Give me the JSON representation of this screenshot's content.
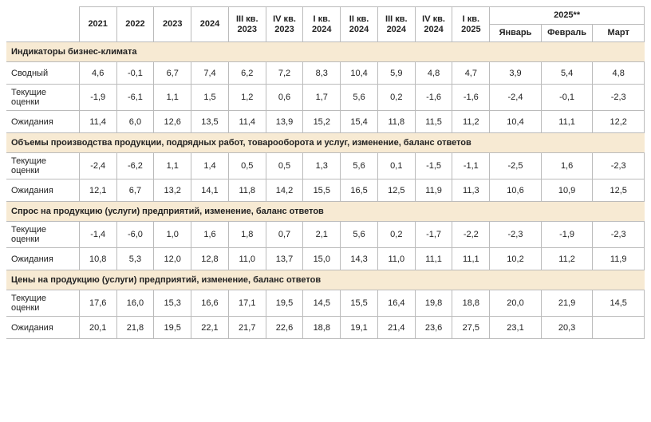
{
  "header": {
    "years": [
      "2021",
      "2022",
      "2023",
      "2024"
    ],
    "quarters": [
      "III кв. 2023",
      "IV кв. 2023",
      "I кв. 2024",
      "II кв. 2024",
      "III кв. 2024",
      "IV кв. 2024",
      "I кв. 2025"
    ],
    "months_group": "2025**",
    "months": [
      "Январь",
      "Февраль",
      "Март"
    ]
  },
  "sections": [
    {
      "title": "Индикаторы бизнес-климата",
      "rows": [
        {
          "label": "Сводный",
          "cells": [
            "4,6",
            "-0,1",
            "6,7",
            "7,4",
            "6,2",
            "7,2",
            "8,3",
            "10,4",
            "5,9",
            "4,8",
            "4,7",
            "3,9",
            "5,4",
            "4,8"
          ]
        },
        {
          "label": "Текущие оценки",
          "cells": [
            "-1,9",
            "-6,1",
            "1,1",
            "1,5",
            "1,2",
            "0,6",
            "1,7",
            "5,6",
            "0,2",
            "-1,6",
            "-1,6",
            "-2,4",
            "-0,1",
            "-2,3"
          ]
        },
        {
          "label": "Ожидания",
          "cells": [
            "11,4",
            "6,0",
            "12,6",
            "13,5",
            "11,4",
            "13,9",
            "15,2",
            "15,4",
            "11,8",
            "11,5",
            "11,2",
            "10,4",
            "11,1",
            "12,2"
          ]
        }
      ]
    },
    {
      "title": "Объемы производства продукции, подрядных работ, товарооборота и услуг, изменение, баланс ответов",
      "rows": [
        {
          "label": "Текущие оценки",
          "cells": [
            "-2,4",
            "-6,2",
            "1,1",
            "1,4",
            "0,5",
            "0,5",
            "1,3",
            "5,6",
            "0,1",
            "-1,5",
            "-1,1",
            "-2,5",
            "1,6",
            "-2,3"
          ]
        },
        {
          "label": "Ожидания",
          "cells": [
            "12,1",
            "6,7",
            "13,2",
            "14,1",
            "11,8",
            "14,2",
            "15,5",
            "16,5",
            "12,5",
            "11,9",
            "11,3",
            "10,6",
            "10,9",
            "12,5"
          ]
        }
      ]
    },
    {
      "title": "Спрос на продукцию (услуги) предприятий, изменение, баланс ответов",
      "rows": [
        {
          "label": "Текущие оценки",
          "cells": [
            "-1,4",
            "-6,0",
            "1,0",
            "1,6",
            "1,8",
            "0,7",
            "2,1",
            "5,6",
            "0,2",
            "-1,7",
            "-2,2",
            "-2,3",
            "-1,9",
            "-2,3"
          ]
        },
        {
          "label": "Ожидания",
          "cells": [
            "10,8",
            "5,3",
            "12,0",
            "12,8",
            "11,0",
            "13,7",
            "15,0",
            "14,3",
            "11,0",
            "11,1",
            "11,1",
            "10,2",
            "11,2",
            "11,9"
          ]
        }
      ]
    },
    {
      "title": "Цены на продукцию (услуги) предприятий, изменение, баланс ответов",
      "rows": [
        {
          "label": "Текущие оценки",
          "cells": [
            "17,6",
            "16,0",
            "15,3",
            "16,6",
            "17,1",
            "19,5",
            "14,5",
            "15,5",
            "16,4",
            "19,8",
            "18,8",
            "20,0",
            "21,9",
            "14,5"
          ]
        },
        {
          "label": "Ожидания",
          "cells": [
            "20,1",
            "21,8",
            "19,5",
            "22,1",
            "21,7",
            "22,6",
            "18,8",
            "19,1",
            "21,4",
            "23,6",
            "27,5",
            "23,1",
            "20,3",
            ""
          ]
        }
      ]
    }
  ]
}
